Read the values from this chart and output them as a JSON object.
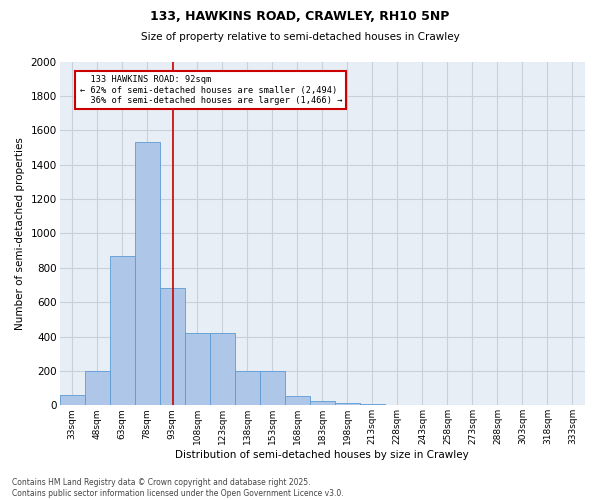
{
  "title_line1": "133, HAWKINS ROAD, CRAWLEY, RH10 5NP",
  "title_line2": "Size of property relative to semi-detached houses in Crawley",
  "xlabel": "Distribution of semi-detached houses by size in Crawley",
  "ylabel": "Number of semi-detached properties",
  "bar_labels": [
    "33sqm",
    "48sqm",
    "63sqm",
    "78sqm",
    "93sqm",
    "108sqm",
    "123sqm",
    "138sqm",
    "153sqm",
    "168sqm",
    "183sqm",
    "198sqm",
    "213sqm",
    "228sqm",
    "243sqm",
    "258sqm",
    "273sqm",
    "288sqm",
    "303sqm",
    "318sqm",
    "333sqm"
  ],
  "bar_values": [
    60,
    200,
    870,
    1530,
    680,
    420,
    420,
    200,
    200,
    55,
    25,
    15,
    10,
    0,
    0,
    0,
    0,
    0,
    0,
    0,
    0
  ],
  "bar_color": "#aec6e8",
  "bar_edge_color": "#5b9bd5",
  "property_label": "133 HAWKINS ROAD: 92sqm",
  "pct_smaller": 62,
  "count_smaller": 2494,
  "pct_larger": 36,
  "count_larger": 1466,
  "vline_color": "#cc0000",
  "annotation_box_color": "#cc0000",
  "ylim": [
    0,
    2000
  ],
  "yticks": [
    0,
    200,
    400,
    600,
    800,
    1000,
    1200,
    1400,
    1600,
    1800,
    2000
  ],
  "grid_color": "#c8d0dc",
  "background_color": "#e8eef5",
  "footer": "Contains HM Land Registry data © Crown copyright and database right 2025.\nContains public sector information licensed under the Open Government Licence v3.0.",
  "vline_x_index": 4.05
}
